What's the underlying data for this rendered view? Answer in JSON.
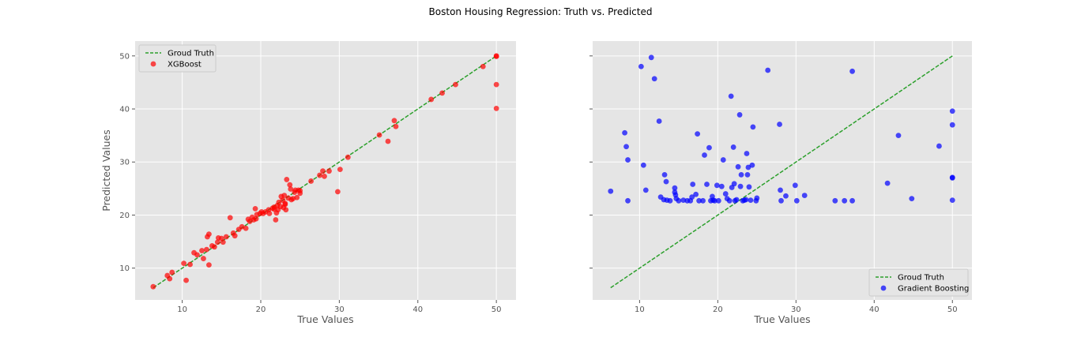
{
  "figure": {
    "title": "Boston Housing Regression: Truth vs. Predicted"
  },
  "chart_data": [
    {
      "type": "scatter",
      "title": "",
      "xlabel": "True Values",
      "ylabel": "Predicted Values",
      "xlim": [
        4.0,
        52.5
      ],
      "ylim": [
        4.0,
        52.8
      ],
      "xticks": [
        10,
        20,
        30,
        40,
        50
      ],
      "yticks": [
        10,
        20,
        30,
        40,
        50
      ],
      "grid": true,
      "legend_position": "upper-left",
      "line": {
        "name": "Groud Truth",
        "color": "#2ca02c",
        "style": "dashed",
        "x": [
          6.3,
          50.0
        ],
        "y": [
          6.3,
          50.0
        ]
      },
      "series": [
        {
          "name": "XGBoost",
          "color": "#ff0000",
          "points": [
            [
              6.3,
              6.5
            ],
            [
              8.1,
              8.6
            ],
            [
              8.4,
              8.0
            ],
            [
              8.7,
              9.2
            ],
            [
              10.2,
              10.9
            ],
            [
              10.5,
              7.7
            ],
            [
              11.0,
              10.7
            ],
            [
              11.5,
              12.9
            ],
            [
              11.9,
              12.5
            ],
            [
              12.5,
              13.3
            ],
            [
              12.7,
              11.8
            ],
            [
              13.1,
              13.5
            ],
            [
              13.2,
              15.9
            ],
            [
              13.4,
              10.6
            ],
            [
              13.4,
              16.4
            ],
            [
              13.8,
              14.2
            ],
            [
              14.1,
              14.0
            ],
            [
              14.5,
              14.9
            ],
            [
              14.6,
              15.7
            ],
            [
              15.0,
              15.6
            ],
            [
              15.2,
              14.9
            ],
            [
              15.6,
              15.9
            ],
            [
              16.1,
              19.5
            ],
            [
              16.5,
              16.6
            ],
            [
              16.7,
              16.1
            ],
            [
              17.2,
              17.3
            ],
            [
              17.6,
              17.8
            ],
            [
              18.1,
              17.5
            ],
            [
              18.4,
              19.2
            ],
            [
              18.6,
              18.8
            ],
            [
              18.9,
              19.6
            ],
            [
              19.1,
              19.1
            ],
            [
              19.3,
              21.2
            ],
            [
              19.4,
              19.3
            ],
            [
              19.5,
              20.1
            ],
            [
              19.9,
              20.3
            ],
            [
              20.1,
              20.6
            ],
            [
              20.3,
              20.3
            ],
            [
              20.6,
              20.6
            ],
            [
              21.0,
              21.0
            ],
            [
              21.1,
              20.3
            ],
            [
              21.5,
              21.3
            ],
            [
              21.7,
              21.5
            ],
            [
              21.7,
              21.1
            ],
            [
              21.9,
              19.1
            ],
            [
              22.0,
              20.4
            ],
            [
              22.1,
              21.8
            ],
            [
              22.2,
              21.0
            ],
            [
              22.3,
              22.4
            ],
            [
              22.5,
              21.6
            ],
            [
              22.6,
              23.5
            ],
            [
              22.8,
              22.8
            ],
            [
              22.9,
              21.4
            ],
            [
              23.0,
              23.7
            ],
            [
              23.1,
              22.2
            ],
            [
              23.1,
              22.0
            ],
            [
              23.2,
              21.0
            ],
            [
              23.3,
              26.7
            ],
            [
              23.5,
              23.2
            ],
            [
              23.7,
              25.7
            ],
            [
              23.8,
              24.9
            ],
            [
              23.9,
              22.9
            ],
            [
              24.1,
              23.1
            ],
            [
              24.3,
              24.3
            ],
            [
              24.4,
              24.7
            ],
            [
              24.6,
              23.3
            ],
            [
              24.8,
              24.7
            ],
            [
              25.0,
              24.6
            ],
            [
              25.0,
              24.1
            ],
            [
              26.4,
              26.4
            ],
            [
              27.5,
              27.5
            ],
            [
              27.9,
              28.3
            ],
            [
              28.1,
              27.3
            ],
            [
              28.7,
              28.3
            ],
            [
              29.8,
              24.4
            ],
            [
              30.1,
              28.6
            ],
            [
              31.1,
              30.9
            ],
            [
              35.1,
              35.1
            ],
            [
              36.2,
              33.9
            ],
            [
              37.0,
              37.8
            ],
            [
              37.2,
              36.7
            ],
            [
              41.7,
              41.8
            ],
            [
              43.1,
              43.0
            ],
            [
              44.8,
              44.6
            ],
            [
              48.3,
              48.0
            ],
            [
              50.0,
              50.0
            ],
            [
              50.0,
              49.9
            ],
            [
              50.0,
              44.6
            ],
            [
              50.0,
              40.1
            ]
          ]
        }
      ]
    },
    {
      "type": "scatter",
      "title": "",
      "xlabel": "True Values",
      "ylabel": "",
      "xlim": [
        4.0,
        52.5
      ],
      "ylim": [
        4.0,
        52.8
      ],
      "xticks": [
        10,
        20,
        30,
        40,
        50
      ],
      "yticks": [
        10,
        20,
        30,
        40,
        50
      ],
      "show_ytick_labels": false,
      "grid": true,
      "legend_position": "lower-right",
      "line": {
        "name": "Groud Truth",
        "color": "#2ca02c",
        "style": "dashed",
        "x": [
          6.3,
          50.0
        ],
        "y": [
          6.3,
          50.0
        ]
      },
      "series": [
        {
          "name": "Gradient Boosting",
          "color": "#0000ff",
          "points": [
            [
              6.3,
              24.5
            ],
            [
              8.1,
              35.5
            ],
            [
              8.3,
              32.9
            ],
            [
              8.5,
              30.4
            ],
            [
              8.5,
              22.7
            ],
            [
              10.2,
              48.0
            ],
            [
              10.5,
              29.4
            ],
            [
              10.8,
              24.7
            ],
            [
              11.5,
              49.7
            ],
            [
              11.9,
              45.7
            ],
            [
              12.5,
              37.7
            ],
            [
              12.7,
              23.4
            ],
            [
              13.1,
              22.9
            ],
            [
              13.2,
              27.6
            ],
            [
              13.4,
              26.3
            ],
            [
              13.5,
              22.8
            ],
            [
              13.9,
              22.7
            ],
            [
              14.5,
              25.1
            ],
            [
              14.5,
              24.3
            ],
            [
              14.6,
              23.8
            ],
            [
              14.7,
              23.1
            ],
            [
              15.0,
              22.7
            ],
            [
              15.6,
              22.8
            ],
            [
              16.1,
              22.7
            ],
            [
              16.5,
              22.7
            ],
            [
              16.7,
              23.4
            ],
            [
              16.8,
              25.8
            ],
            [
              17.2,
              23.9
            ],
            [
              17.4,
              35.3
            ],
            [
              17.6,
              22.7
            ],
            [
              18.1,
              22.7
            ],
            [
              18.3,
              31.3
            ],
            [
              18.6,
              25.8
            ],
            [
              18.9,
              32.7
            ],
            [
              19.1,
              22.7
            ],
            [
              19.3,
              23.5
            ],
            [
              19.4,
              22.8
            ],
            [
              19.6,
              22.7
            ],
            [
              19.9,
              25.6
            ],
            [
              20.1,
              22.7
            ],
            [
              20.5,
              25.4
            ],
            [
              20.7,
              30.4
            ],
            [
              21.0,
              24.0
            ],
            [
              21.2,
              23.1
            ],
            [
              21.5,
              22.7
            ],
            [
              21.7,
              42.4
            ],
            [
              21.8,
              25.2
            ],
            [
              22.0,
              32.8
            ],
            [
              22.1,
              25.9
            ],
            [
              22.2,
              22.7
            ],
            [
              22.4,
              22.9
            ],
            [
              22.6,
              29.1
            ],
            [
              22.8,
              38.9
            ],
            [
              22.9,
              25.4
            ],
            [
              23.0,
              27.6
            ],
            [
              23.2,
              22.7
            ],
            [
              23.4,
              22.8
            ],
            [
              23.6,
              22.9
            ],
            [
              23.7,
              31.6
            ],
            [
              23.8,
              27.6
            ],
            [
              23.9,
              29.0
            ],
            [
              24.0,
              25.3
            ],
            [
              24.2,
              22.8
            ],
            [
              24.4,
              29.4
            ],
            [
              24.5,
              36.6
            ],
            [
              24.9,
              22.7
            ],
            [
              25.0,
              23.2
            ],
            [
              26.4,
              47.3
            ],
            [
              27.9,
              37.1
            ],
            [
              28.0,
              24.7
            ],
            [
              28.1,
              22.7
            ],
            [
              28.7,
              23.6
            ],
            [
              29.9,
              25.6
            ],
            [
              30.1,
              22.7
            ],
            [
              31.1,
              23.7
            ],
            [
              35.0,
              22.7
            ],
            [
              36.2,
              22.7
            ],
            [
              37.2,
              47.1
            ],
            [
              37.2,
              22.7
            ],
            [
              41.7,
              26.0
            ],
            [
              43.1,
              35.0
            ],
            [
              44.8,
              23.1
            ],
            [
              48.3,
              33.0
            ],
            [
              50.0,
              39.6
            ],
            [
              50.0,
              37.0
            ],
            [
              50.0,
              27.1
            ],
            [
              50.0,
              27.0
            ],
            [
              50.0,
              22.8
            ]
          ]
        }
      ]
    }
  ]
}
